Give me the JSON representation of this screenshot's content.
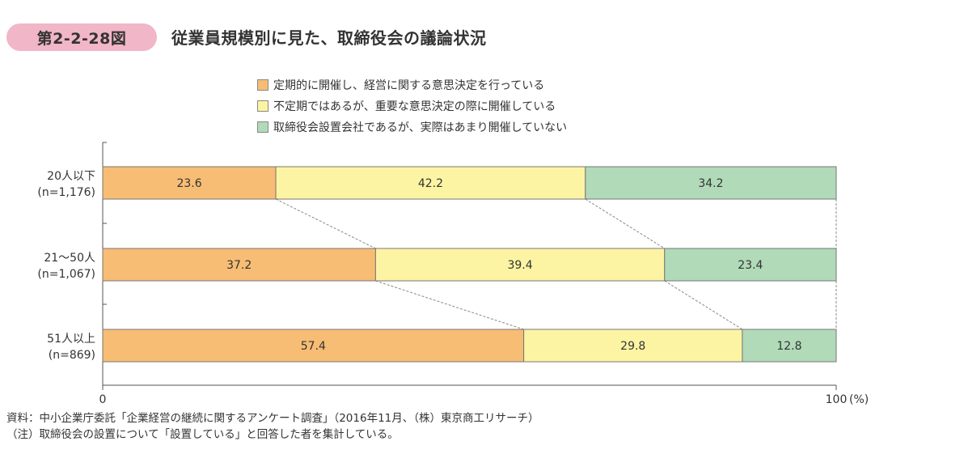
{
  "figure": {
    "number": "第2-2-28図",
    "title": "従業員規模別に見た、取締役会の議論状況"
  },
  "legend": [
    {
      "label": "定期的に開催し、経営に関する意思決定を行っている",
      "color": "#f7bd74"
    },
    {
      "label": "不定期ではあるが、重要な意思決定の際に開催している",
      "color": "#fcf4a3"
    },
    {
      "label": "取締役会設置会社であるが、実際はあまり開催していない",
      "color": "#b1dab8"
    }
  ],
  "chart_data": {
    "type": "bar",
    "orientation": "horizontal",
    "stacked": true,
    "percent": true,
    "categories": [
      {
        "label": "20人以下",
        "n": "(n=1,176)"
      },
      {
        "label": "21～50人",
        "n": "(n=1,067)"
      },
      {
        "label": "51人以上",
        "n": "(n=869)"
      }
    ],
    "series": [
      {
        "name": "定期的に開催し、経営に関する意思決定を行っている",
        "color": "#f7bd74",
        "values": [
          23.6,
          37.2,
          57.4
        ]
      },
      {
        "name": "不定期ではあるが、重要な意思決定の際に開催している",
        "color": "#fcf4a3",
        "values": [
          42.2,
          39.4,
          29.8
        ]
      },
      {
        "name": "取締役会設置会社であるが、実際はあまり開催していない",
        "color": "#b1dab8",
        "values": [
          34.2,
          23.4,
          12.8
        ]
      }
    ],
    "xlim": [
      0,
      100
    ],
    "x_tick_labels": [
      "0",
      "100"
    ],
    "x_unit": "(%)",
    "connector_lines": true
  },
  "notes": {
    "source": "資料：中小企業庁委託「企業経営の継続に関するアンケート調査」（2016年11月、（株）東京商工リサーチ）",
    "note": "（注）取締役会の設置について「設置している」と回答した者を集計している。"
  }
}
